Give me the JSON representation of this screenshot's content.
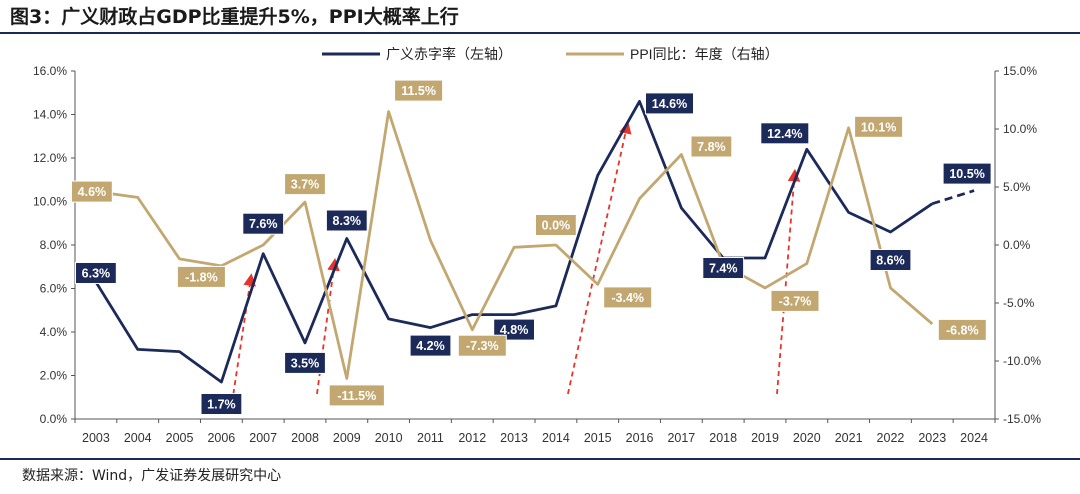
{
  "title": "图3：广义财政占GDP比重提升5%，PPI大概率上行",
  "source": "数据来源：Wind，广发证券发展研究中心",
  "colors": {
    "navy": "#1c2a5a",
    "gold": "#c2a770",
    "red": "#e8332a",
    "axis": "#555555"
  },
  "chart_data": {
    "type": "line",
    "categories": [
      "2003",
      "2004",
      "2005",
      "2006",
      "2007",
      "2008",
      "2009",
      "2010",
      "2011",
      "2012",
      "2013",
      "2014",
      "2015",
      "2016",
      "2017",
      "2018",
      "2019",
      "2020",
      "2021",
      "2022",
      "2023",
      "2024"
    ],
    "series": [
      {
        "name": "广义赤字率（左轴）",
        "axis": "left",
        "values": [
          6.3,
          3.2,
          3.1,
          1.7,
          7.6,
          3.5,
          8.3,
          4.6,
          4.2,
          4.8,
          4.8,
          5.2,
          11.2,
          14.6,
          9.7,
          7.4,
          7.4,
          12.4,
          9.5,
          8.6,
          9.9,
          10.5
        ],
        "dashed_from_index": 20
      },
      {
        "name": "PPI同比：年度（右轴）",
        "axis": "right",
        "values": [
          4.6,
          4.1,
          -1.2,
          -1.8,
          0.0,
          3.7,
          -11.5,
          11.5,
          0.4,
          -7.3,
          -0.2,
          0.0,
          -3.4,
          4.0,
          7.8,
          -1.7,
          -3.7,
          -1.6,
          10.1,
          -3.7,
          -6.8,
          null
        ]
      }
    ],
    "labels": [
      {
        "series": 0,
        "index": 0,
        "text": "6.3%"
      },
      {
        "series": 0,
        "index": 3,
        "text": "1.7%"
      },
      {
        "series": 0,
        "index": 4,
        "text": "7.6%"
      },
      {
        "series": 0,
        "index": 5,
        "text": "3.5%"
      },
      {
        "series": 0,
        "index": 6,
        "text": "8.3%"
      },
      {
        "series": 0,
        "index": 8,
        "text": "4.2%"
      },
      {
        "series": 0,
        "index": 10,
        "text": "4.8%"
      },
      {
        "series": 0,
        "index": 13,
        "text": "14.6%"
      },
      {
        "series": 0,
        "index": 15,
        "text": "7.4%"
      },
      {
        "series": 0,
        "index": 17,
        "text": "12.4%"
      },
      {
        "series": 0,
        "index": 19,
        "text": "8.6%"
      },
      {
        "series": 0,
        "index": 21,
        "text": "10.5%"
      },
      {
        "series": 1,
        "index": 0,
        "text": "4.6%"
      },
      {
        "series": 1,
        "index": 3,
        "text": "-1.8%"
      },
      {
        "series": 1,
        "index": 5,
        "text": "3.7%"
      },
      {
        "series": 1,
        "index": 6,
        "text": "-11.5%"
      },
      {
        "series": 1,
        "index": 7,
        "text": "11.5%"
      },
      {
        "series": 1,
        "index": 9,
        "text": "-7.3%"
      },
      {
        "series": 1,
        "index": 11,
        "text": "0.0%"
      },
      {
        "series": 1,
        "index": 12,
        "text": "-3.4%"
      },
      {
        "series": 1,
        "index": 14,
        "text": "7.8%"
      },
      {
        "series": 1,
        "index": 16,
        "text": "-3.7%"
      },
      {
        "series": 1,
        "index": 18,
        "text": "10.1%"
      },
      {
        "series": 1,
        "index": 20,
        "text": "-6.8%"
      }
    ],
    "trend_arrows": [
      {
        "from": "2006",
        "to": "2007"
      },
      {
        "from": "2008",
        "to": "2009"
      },
      {
        "from": "2014",
        "to": "2016"
      },
      {
        "from": "2019",
        "to": "2020"
      }
    ],
    "left_axis": {
      "min": 0,
      "max": 16,
      "ticks": [
        "0.0%",
        "2.0%",
        "4.0%",
        "6.0%",
        "8.0%",
        "10.0%",
        "12.0%",
        "14.0%",
        "16.0%"
      ]
    },
    "right_axis": {
      "min": -15,
      "max": 15,
      "ticks": [
        "-15.0%",
        "-10.0%",
        "-5.0%",
        "0.0%",
        "5.0%",
        "10.0%",
        "15.0%"
      ]
    },
    "legend_position": "top-center"
  }
}
